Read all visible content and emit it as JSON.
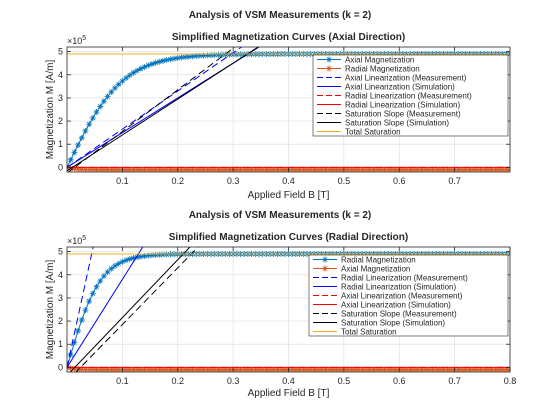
{
  "chart_data": [
    {
      "type": "line",
      "figure_title": "Analysis of VSM Measurements (k = 2)",
      "title": "Simplified Magnetization Curves (Axial Direction)",
      "xlabel": "Applied Field B [T]",
      "ylabel": "Magnetization M [A/m]",
      "y_exponent": "×10",
      "y_exponent_power": "5",
      "xlim": [
        0,
        0.8
      ],
      "ylim": [
        -0.2,
        5.2
      ],
      "x_ticks": [
        0.1,
        0.2,
        0.3,
        0.4,
        0.5,
        0.6,
        0.7
      ],
      "x_tick_labels": [
        "0.1",
        "0.2",
        "0.3",
        "0.4",
        "0.5",
        "0.6",
        "0.7"
      ],
      "y_ticks": [
        0,
        1,
        2,
        3,
        4,
        5
      ],
      "y_tick_labels": [
        "0",
        "1",
        "2",
        "3",
        "4",
        "5"
      ],
      "grid": true,
      "legend_position": "top-right",
      "series": [
        {
          "name": "Axial Magnetization",
          "kind": "curve",
          "Ms": 4.9,
          "c": 0.1,
          "color": "#0072BD",
          "marker": "asterisk",
          "dash": ""
        },
        {
          "name": "Radial Magnetization",
          "kind": "curve",
          "Ms": -0.1,
          "c": 0.02,
          "color": "#D95319",
          "marker": "asterisk",
          "dash": ""
        },
        {
          "name": "Axial Linearization (Measurement)",
          "kind": "line",
          "slope": 16.5,
          "intercept": 0,
          "color": "#0000FF",
          "marker": "",
          "dash": "7,4"
        },
        {
          "name": "Axial Linearization (Simulation)",
          "kind": "line",
          "slope": 15.0,
          "intercept": 0,
          "color": "#0000FF",
          "marker": "",
          "dash": ""
        },
        {
          "name": "Radial Linearization (Measurement)",
          "kind": "line",
          "slope": 0,
          "intercept": 0,
          "color": "#FF0000",
          "marker": "",
          "dash": "7,4"
        },
        {
          "name": "Radial Linearization (Simulation)",
          "kind": "line",
          "slope": 0,
          "intercept": 0,
          "color": "#FF0000",
          "marker": "",
          "dash": ""
        },
        {
          "name": "Saturation Slope (Measurement)",
          "kind": "line",
          "slope": 18.0,
          "intercept": -0.25,
          "color": "#000000",
          "marker": "",
          "dash": "7,4"
        },
        {
          "name": "Saturation Slope (Simulation)",
          "kind": "line",
          "slope": 15.5,
          "intercept": -0.15,
          "color": "#000000",
          "marker": "",
          "dash": ""
        },
        {
          "name": "Total Saturation",
          "kind": "hline",
          "value": 4.9,
          "color": "#EDB120",
          "marker": "",
          "dash": ""
        }
      ]
    },
    {
      "type": "line",
      "figure_title": "Analysis of VSM Measurements (k = 2)",
      "title": "Simplified Magnetization Curves (Radial Direction)",
      "xlabel": "Applied Field B [T]",
      "ylabel": "Magnetization M [A/m]",
      "y_exponent": "×10",
      "y_exponent_power": "5",
      "xlim": [
        0,
        0.8
      ],
      "ylim": [
        -0.2,
        5.2
      ],
      "x_ticks": [
        0.1,
        0.2,
        0.3,
        0.4,
        0.5,
        0.6,
        0.7,
        0.8
      ],
      "x_tick_labels": [
        "0.1",
        "0.2",
        "0.3",
        "0.4",
        "0.5",
        "0.6",
        "0.7",
        "0.8"
      ],
      "y_ticks": [
        0,
        1,
        2,
        3,
        4,
        5
      ],
      "y_tick_labels": [
        "0",
        "1",
        "2",
        "3",
        "4",
        "5"
      ],
      "grid": true,
      "legend_position": "top-right",
      "series": [
        {
          "name": "Radial Magnetization",
          "kind": "curve",
          "Ms": 4.9,
          "c": 0.06,
          "color": "#0072BD",
          "marker": "asterisk",
          "dash": ""
        },
        {
          "name": "Axial Magnetization",
          "kind": "curve",
          "Ms": -0.1,
          "c": 0.02,
          "color": "#D95319",
          "marker": "asterisk",
          "dash": ""
        },
        {
          "name": "Radial Linearization (Measurement)",
          "kind": "line",
          "slope": 110.0,
          "intercept": 0,
          "color": "#0000FF",
          "marker": "",
          "dash": "7,4"
        },
        {
          "name": "Radial Linearization (Simulation)",
          "kind": "line",
          "slope": 38.0,
          "intercept": 0,
          "color": "#0000FF",
          "marker": "",
          "dash": ""
        },
        {
          "name": "Axial Linearization (Measurement)",
          "kind": "line",
          "slope": 0,
          "intercept": 0,
          "color": "#FF0000",
          "marker": "",
          "dash": "7,4"
        },
        {
          "name": "Axial Linearization (Simulation)",
          "kind": "line",
          "slope": 0,
          "intercept": 0,
          "color": "#FF0000",
          "marker": "",
          "dash": ""
        },
        {
          "name": "Saturation Slope (Measurement)",
          "kind": "line",
          "slope": 24.5,
          "intercept": -0.6,
          "color": "#000000",
          "marker": "",
          "dash": "7,4"
        },
        {
          "name": "Saturation Slope (Simulation)",
          "kind": "line",
          "slope": 25.0,
          "intercept": -0.35,
          "color": "#000000",
          "marker": "",
          "dash": ""
        },
        {
          "name": "Total Saturation",
          "kind": "hline",
          "value": 4.9,
          "color": "#EDB120",
          "marker": "",
          "dash": ""
        }
      ]
    }
  ]
}
